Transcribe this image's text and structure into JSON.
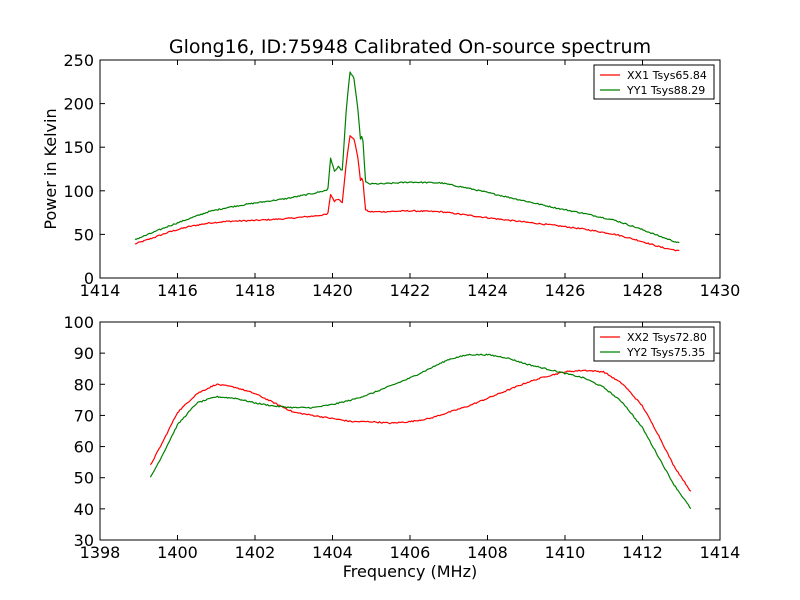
{
  "figure": {
    "title": "Glong16, ID:75948 Calibrated On-source spectrum",
    "ylabel": "Power in Kelvin",
    "xlabel": "Frequency (MHz)",
    "colors": {
      "red": "#ff0000",
      "green": "#008000"
    }
  },
  "chart_data": [
    {
      "type": "line",
      "xlabel": "",
      "ylabel": "Power in Kelvin",
      "xlim": [
        1414,
        1430
      ],
      "ylim": [
        0,
        250
      ],
      "xticks": [
        "1414",
        "1416",
        "1418",
        "1420",
        "1422",
        "1424",
        "1426",
        "1428",
        "1430"
      ],
      "yticks": [
        "0",
        "50",
        "100",
        "150",
        "200",
        "250"
      ],
      "legend": "top-right",
      "series": [
        {
          "name": "XX1 Tsys65.84",
          "color": "#ff0000",
          "x": [
            1414.9,
            1415.3,
            1415.8,
            1416.3,
            1416.8,
            1417.3,
            1418.0,
            1418.8,
            1419.5,
            1419.88,
            1419.95,
            1420.05,
            1420.15,
            1420.25,
            1420.35,
            1420.45,
            1420.55,
            1420.65,
            1420.72,
            1420.78,
            1420.85,
            1420.95,
            1421.3,
            1422.0,
            1422.8,
            1423.5,
            1424.2,
            1425.0,
            1425.8,
            1426.5,
            1427.3,
            1427.9,
            1428.5,
            1428.95
          ],
          "y": [
            39,
            45,
            53,
            59,
            63,
            65,
            66,
            68,
            71,
            73,
            96,
            88,
            91,
            86,
            130,
            163,
            160,
            140,
            112,
            115,
            78,
            76,
            76,
            77,
            76,
            72,
            68,
            64,
            60,
            56,
            50,
            43,
            35,
            31
          ]
        },
        {
          "name": "YY1 Tsys88.29",
          "color": "#008000",
          "x": [
            1414.9,
            1415.3,
            1415.8,
            1416.3,
            1416.8,
            1417.3,
            1418.0,
            1418.8,
            1419.5,
            1419.88,
            1419.95,
            1420.05,
            1420.15,
            1420.25,
            1420.35,
            1420.45,
            1420.55,
            1420.65,
            1420.72,
            1420.78,
            1420.85,
            1420.95,
            1421.3,
            1422.0,
            1422.8,
            1423.5,
            1424.2,
            1425.0,
            1425.8,
            1426.5,
            1427.3,
            1427.9,
            1428.5,
            1428.95
          ],
          "y": [
            44,
            51,
            60,
            68,
            76,
            81,
            86,
            91,
            97,
            101,
            138,
            122,
            128,
            122,
            190,
            236,
            230,
            195,
            160,
            163,
            110,
            108,
            108,
            110,
            109,
            103,
            96,
            88,
            80,
            74,
            66,
            57,
            47,
            40
          ]
        }
      ]
    },
    {
      "type": "line",
      "xlabel": "Frequency (MHz)",
      "ylabel": "",
      "xlim": [
        1398,
        1414
      ],
      "ylim": [
        30,
        100
      ],
      "xticks": [
        "1398",
        "1400",
        "1402",
        "1404",
        "1406",
        "1408",
        "1410",
        "1412",
        "1414"
      ],
      "yticks": [
        "30",
        "40",
        "50",
        "60",
        "70",
        "80",
        "90",
        "100"
      ],
      "legend": "top-right",
      "series": [
        {
          "name": "XX2 Tsys72.80",
          "color": "#ff0000",
          "x": [
            1399.3,
            1399.6,
            1400.0,
            1400.5,
            1401.0,
            1401.5,
            1402.0,
            1402.5,
            1403.0,
            1403.5,
            1404.0,
            1404.5,
            1405.0,
            1405.5,
            1406.0,
            1406.5,
            1407.0,
            1407.5,
            1408.0,
            1408.5,
            1409.0,
            1409.5,
            1410.0,
            1410.5,
            1411.0,
            1411.5,
            1412.0,
            1412.4,
            1412.8,
            1413.25
          ],
          "y": [
            54,
            61,
            71,
            77,
            80,
            79,
            77,
            74,
            71,
            70,
            69,
            68,
            68,
            67.5,
            68,
            69,
            71,
            73,
            75.5,
            78,
            80.5,
            82.5,
            84,
            84.5,
            84,
            80,
            73,
            64,
            54,
            45.5
          ]
        },
        {
          "name": "YY2 Tsys75.35",
          "color": "#008000",
          "x": [
            1399.3,
            1399.6,
            1400.0,
            1400.5,
            1401.0,
            1401.5,
            1402.0,
            1402.5,
            1403.0,
            1403.5,
            1404.0,
            1404.5,
            1405.0,
            1405.5,
            1406.0,
            1406.5,
            1407.0,
            1407.5,
            1408.0,
            1408.5,
            1409.0,
            1409.5,
            1410.0,
            1410.5,
            1411.0,
            1411.5,
            1412.0,
            1412.4,
            1412.8,
            1413.25
          ],
          "y": [
            50,
            57,
            67,
            74,
            76,
            75.5,
            74,
            73,
            72.5,
            72.5,
            73.5,
            75,
            77,
            79.5,
            82,
            85,
            88,
            89.5,
            89.5,
            88.5,
            86.5,
            85,
            83.5,
            82,
            79,
            74,
            66,
            57,
            48,
            40
          ]
        }
      ]
    }
  ]
}
